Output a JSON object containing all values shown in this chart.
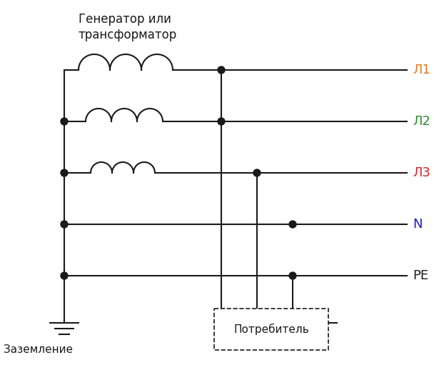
{
  "title_line1": "Генератор или",
  "title_line2": "трансформатор",
  "bg_color": "#ffffff",
  "line_color": "#1a1a1a",
  "label_L1_color": "#e07820",
  "label_L2_color": "#2a8a2a",
  "label_L3_color": "#cc2222",
  "label_N_color": "#1a1acc",
  "label_PE_color": "#1a1a1a",
  "labels": [
    "Л1",
    "Л2",
    "Л3",
    "N",
    "PE"
  ],
  "ground_label": "Заземление",
  "consumer_label": "Потребитель",
  "figsize": [
    6.08,
    5.25
  ],
  "dpi": 100
}
